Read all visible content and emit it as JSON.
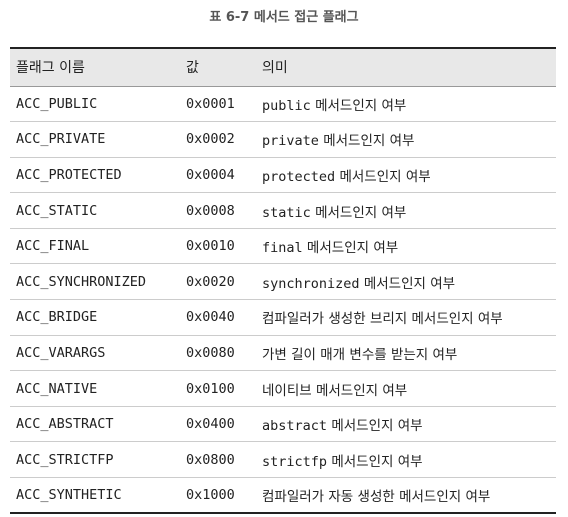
{
  "caption": "표 6-7 메서드 접근 플래그",
  "table": {
    "headers": [
      "플래그 이름",
      "값",
      "의미"
    ],
    "rows": [
      {
        "name": "ACC_PUBLIC",
        "value": "0x0001",
        "code": "public",
        "text": " 메서드인지 여부"
      },
      {
        "name": "ACC_PRIVATE",
        "value": "0x0002",
        "code": "private",
        "text": " 메서드인지 여부"
      },
      {
        "name": "ACC_PROTECTED",
        "value": "0x0004",
        "code": "protected",
        "text": " 메서드인지 여부"
      },
      {
        "name": "ACC_STATIC",
        "value": "0x0008",
        "code": "static",
        "text": " 메서드인지 여부"
      },
      {
        "name": "ACC_FINAL",
        "value": "0x0010",
        "code": "final",
        "text": " 메서드인지 여부"
      },
      {
        "name": "ACC_SYNCHRONIZED",
        "value": "0x0020",
        "code": "synchronized",
        "text": " 메서드인지 여부"
      },
      {
        "name": "ACC_BRIDGE",
        "value": "0x0040",
        "code": "",
        "text": "컴파일러가 생성한 브리지 메서드인지 여부"
      },
      {
        "name": "ACC_VARARGS",
        "value": "0x0080",
        "code": "",
        "text": "가변 길이 매개 변수를 받는지 여부"
      },
      {
        "name": "ACC_NATIVE",
        "value": "0x0100",
        "code": "",
        "text": "네이티브 메서드인지 여부"
      },
      {
        "name": "ACC_ABSTRACT",
        "value": "0x0400",
        "code": "abstract",
        "text": " 메서드인지 여부"
      },
      {
        "name": "ACC_STRICTFP",
        "value": "0x0800",
        "code": "strictfp",
        "text": " 메서드인지 여부"
      },
      {
        "name": "ACC_SYNTHETIC",
        "value": "0x1000",
        "code": "",
        "text": "컴파일러가 자동 생성한 메서드인지 여부"
      }
    ]
  }
}
